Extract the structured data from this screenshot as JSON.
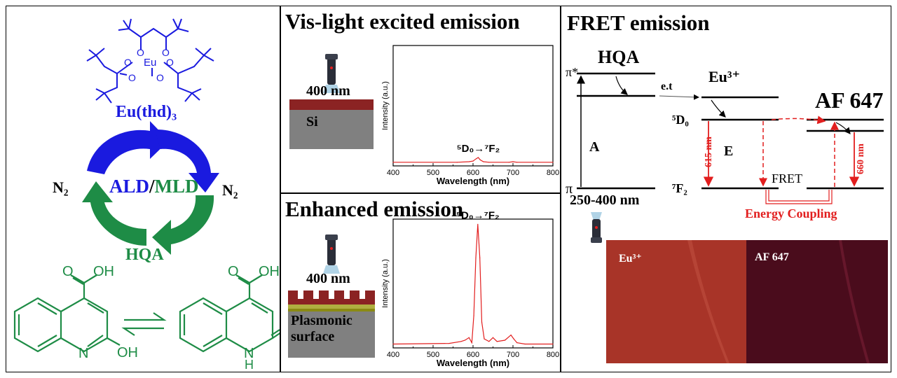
{
  "colors": {
    "blue": "#1a1adf",
    "green": "#1e8c46",
    "red": "#e21e1e",
    "brown": "#8b2323",
    "gray": "#808080",
    "gold": "#8a8a14"
  },
  "left": {
    "complex_label": "Eu(thd)₃",
    "eu_atom": "Eu",
    "o_atom": "O",
    "n2_left": "N₂",
    "n2_right": "N₂",
    "ald": "ALD",
    "slash": "/",
    "mld": "MLD",
    "hqa": "HQA",
    "oh": "OH",
    "o": "O",
    "n": "N",
    "nh": "N",
    "h": "H"
  },
  "top_mid": {
    "title": "Vis-light excited emission",
    "wavelength": "400 nm",
    "substrate": "Si"
  },
  "bottom_mid": {
    "title": "Enhanced emission",
    "wavelength": "400 nm",
    "substrate_line1": "Plasmonic",
    "substrate_line2": "surface"
  },
  "right": {
    "title": "FRET emission",
    "hqa": "HQA",
    "pi_star": "π*",
    "pi": "π",
    "absorption": "A",
    "excitation": "250-400 nm",
    "et": "e.t",
    "eu": "Eu³⁺",
    "d0": "⁵D₀",
    "f2": "⁷F₂",
    "e": "E",
    "nm615": "615 nm",
    "fret": "FRET",
    "af": "AF 647",
    "nm660": "660 nm",
    "coupling": "Energy Coupling",
    "img_eu": "Eu³⁺",
    "img_af": "AF 647"
  },
  "chart_data": [
    {
      "type": "line",
      "xlabel": "Wavelength (nm)",
      "ylabel": "Intensity (a.u.)",
      "xlim": [
        400,
        800
      ],
      "ylim": [
        0,
        1
      ],
      "xticks": [
        "400",
        "500",
        "600",
        "700",
        "800"
      ],
      "annotation": "⁵D₀→⁷F₂",
      "x": [
        400,
        560,
        590,
        600,
        608,
        613,
        618,
        626,
        640,
        690,
        700,
        710,
        800
      ],
      "y": [
        0.03,
        0.03,
        0.035,
        0.04,
        0.06,
        0.07,
        0.05,
        0.035,
        0.03,
        0.03,
        0.035,
        0.03,
        0.03
      ]
    },
    {
      "type": "line",
      "xlabel": "Wavelength (nm)",
      "ylabel": "Intensity (a.u.)",
      "xlim": [
        400,
        800
      ],
      "ylim": [
        0,
        1
      ],
      "xticks": [
        "400",
        "500",
        "600",
        "700",
        "800"
      ],
      "annotation": "⁵D₀→⁷F₂",
      "x": [
        400,
        540,
        570,
        580,
        590,
        597,
        602,
        607,
        612,
        617,
        622,
        628,
        640,
        650,
        660,
        680,
        695,
        702,
        710,
        730,
        800
      ],
      "y": [
        0.03,
        0.035,
        0.05,
        0.06,
        0.08,
        0.04,
        0.25,
        0.7,
        0.96,
        0.7,
        0.2,
        0.07,
        0.05,
        0.08,
        0.05,
        0.06,
        0.1,
        0.07,
        0.04,
        0.03,
        0.03
      ]
    }
  ]
}
